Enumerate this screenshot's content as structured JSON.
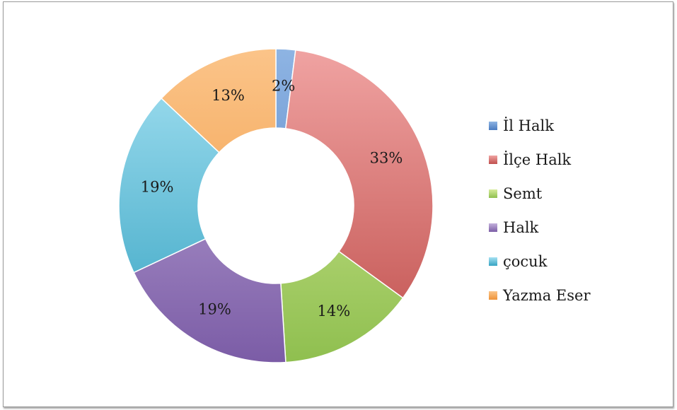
{
  "chart_data": {
    "type": "pie",
    "variant": "donut",
    "title": "",
    "legend_position": "right",
    "categories": [
      "İl Halk",
      "İlçe Halk",
      "Semt",
      "Halk",
      "çocuk",
      "Yazma Eser"
    ],
    "values": [
      2,
      33,
      14,
      19,
      19,
      13
    ],
    "data_labels": [
      "2%",
      "33%",
      "14%",
      "19%",
      "19%",
      "13%"
    ],
    "colors": [
      {
        "light": "#8eb4e3",
        "dark": "#4a7bc0"
      },
      {
        "light": "#f0a3a2",
        "dark": "#c0504d"
      },
      {
        "light": "#d7ec9c",
        "dark": "#8fbf4f"
      },
      {
        "light": "#c3b0dc",
        "dark": "#7b5ca6"
      },
      {
        "light": "#a5e1f2",
        "dark": "#36a3c2"
      },
      {
        "light": "#fbc489",
        "dark": "#ef9338"
      }
    ]
  }
}
